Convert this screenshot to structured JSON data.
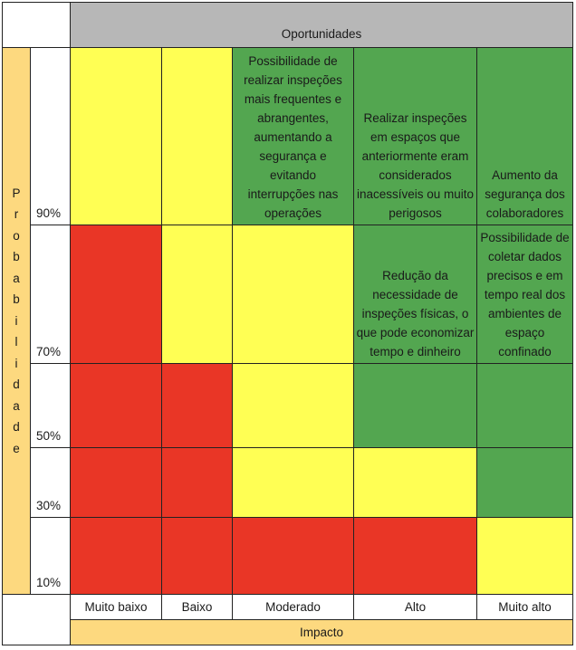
{
  "colors": {
    "green": "#53a650",
    "yellow": "#ffff54",
    "red": "#e93626",
    "header_gray": "#b7b7b7",
    "axis_yellow": "#fdd97f"
  },
  "header": {
    "title": "Oportunidades"
  },
  "y_axis": {
    "title": "Probabilidade",
    "letters": [
      "P",
      "r",
      "o",
      "b",
      "a",
      "b",
      "i",
      "l",
      "i",
      "d",
      "a",
      "d",
      "e"
    ]
  },
  "x_axis": {
    "title": "Impacto",
    "labels": [
      "Muito baixo",
      "Baixo",
      "Moderado",
      "Alto",
      "Muito alto"
    ]
  },
  "rows": [
    {
      "probability": "90%",
      "cells": [
        {
          "level": "yellow",
          "text": ""
        },
        {
          "level": "yellow",
          "text": ""
        },
        {
          "level": "green",
          "text": "Possibilidade de realizar inspeções mais frequentes e abrangentes, aumentando a segurança e evitando interrupções nas operações"
        },
        {
          "level": "green",
          "text": "Realizar inspeções em espaços que anteriormente eram considerados inacessíveis ou muito perigosos"
        },
        {
          "level": "green",
          "text": "Aumento da segurança dos colaboradores"
        }
      ]
    },
    {
      "probability": "70%",
      "cells": [
        {
          "level": "red",
          "text": ""
        },
        {
          "level": "yellow",
          "text": ""
        },
        {
          "level": "yellow",
          "text": ""
        },
        {
          "level": "green",
          "text": "Redução da necessidade de inspeções físicas, o que pode economizar tempo e dinheiro"
        },
        {
          "level": "green",
          "text": "Possibilidade de coletar dados precisos e em tempo real dos ambientes de espaço confinado"
        }
      ]
    },
    {
      "probability": "50%",
      "cells": [
        {
          "level": "red",
          "text": ""
        },
        {
          "level": "red",
          "text": ""
        },
        {
          "level": "yellow",
          "text": ""
        },
        {
          "level": "green",
          "text": ""
        },
        {
          "level": "green",
          "text": ""
        }
      ]
    },
    {
      "probability": "30%",
      "cells": [
        {
          "level": "red",
          "text": ""
        },
        {
          "level": "red",
          "text": ""
        },
        {
          "level": "yellow",
          "text": ""
        },
        {
          "level": "yellow",
          "text": ""
        },
        {
          "level": "green",
          "text": ""
        }
      ]
    },
    {
      "probability": "10%",
      "cells": [
        {
          "level": "red",
          "text": ""
        },
        {
          "level": "red",
          "text": ""
        },
        {
          "level": "red",
          "text": ""
        },
        {
          "level": "red",
          "text": ""
        },
        {
          "level": "yellow",
          "text": ""
        }
      ]
    }
  ]
}
